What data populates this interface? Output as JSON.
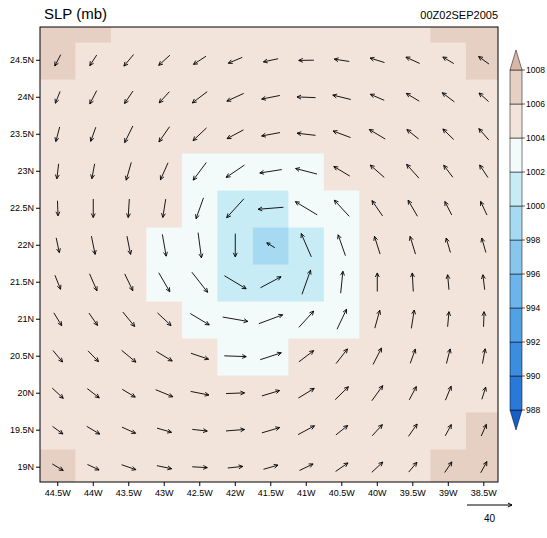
{
  "chart_data": {
    "type": "vector_field",
    "title": "SLP (mb)",
    "subtitle": "00Z02SEP2005",
    "xlim": [
      -44.75,
      -38.3
    ],
    "ylim": [
      18.8,
      24.95
    ],
    "xticks": [
      {
        "value": -44.5,
        "label": "44.5W"
      },
      {
        "value": -44,
        "label": "44W"
      },
      {
        "value": -43.5,
        "label": "43.5W"
      },
      {
        "value": -43,
        "label": "43W"
      },
      {
        "value": -42.5,
        "label": "42.5W"
      },
      {
        "value": -42,
        "label": "42W"
      },
      {
        "value": -41.5,
        "label": "41.5W"
      },
      {
        "value": -41,
        "label": "41W"
      },
      {
        "value": -40.5,
        "label": "40.5W"
      },
      {
        "value": -40,
        "label": "40W"
      },
      {
        "value": -39.5,
        "label": "39.5W"
      },
      {
        "value": -39,
        "label": "39W"
      },
      {
        "value": -38.5,
        "label": "38.5W"
      }
    ],
    "yticks": [
      {
        "value": 19,
        "label": "19N"
      },
      {
        "value": 19.5,
        "label": "19.5N"
      },
      {
        "value": 20,
        "label": "20N"
      },
      {
        "value": 20.5,
        "label": "20.5N"
      },
      {
        "value": 21,
        "label": "21N"
      },
      {
        "value": 21.5,
        "label": "21.5N"
      },
      {
        "value": 22,
        "label": "22N"
      },
      {
        "value": 22.5,
        "label": "22.5N"
      },
      {
        "value": 23,
        "label": "23N"
      },
      {
        "value": 23.5,
        "label": "23.5N"
      },
      {
        "value": 24,
        "label": "24N"
      },
      {
        "value": 24.5,
        "label": "24.5N"
      }
    ],
    "slp": {
      "x": [
        -44.5,
        -44,
        -43.5,
        -43,
        -42.5,
        -42,
        -41.5,
        -41,
        -40.5,
        -40,
        -39.5,
        -39,
        -38.5
      ],
      "y": [
        19,
        19.5,
        20,
        20.5,
        21,
        21.5,
        22,
        22.5,
        23,
        23.5,
        24,
        24.5,
        25
      ],
      "values": [
        [
          1006.3,
          1005.8,
          1005.2,
          1005.0,
          1004.9,
          1004.8,
          1004.8,
          1004.8,
          1004.9,
          1005.0,
          1005.3,
          1006.1,
          1006.4
        ],
        [
          1005.8,
          1005.2,
          1004.9,
          1004.8,
          1004.7,
          1004.7,
          1004.7,
          1004.7,
          1004.7,
          1004.8,
          1004.9,
          1005.3,
          1006.1
        ],
        [
          1005.2,
          1004.9,
          1004.7,
          1004.6,
          1004.5,
          1004.4,
          1004.4,
          1004.4,
          1004.5,
          1004.6,
          1004.7,
          1004.9,
          1005.4
        ],
        [
          1005.0,
          1004.8,
          1004.6,
          1004.5,
          1004.3,
          1003.8,
          1003.6,
          1004.0,
          1004.3,
          1004.5,
          1004.6,
          1004.8,
          1005.0
        ],
        [
          1004.9,
          1004.7,
          1004.5,
          1004.2,
          1003.3,
          1002.4,
          1002.2,
          1002.8,
          1003.7,
          1004.4,
          1004.6,
          1004.7,
          1004.9
        ],
        [
          1004.8,
          1004.7,
          1004.5,
          1003.8,
          1002.3,
          1000.6,
          1000.2,
          1001.3,
          1003.1,
          1004.2,
          1004.5,
          1004.7,
          1004.8
        ],
        [
          1004.8,
          1004.7,
          1004.5,
          1003.7,
          1002.1,
          1000.1,
          999.2,
          1001.0,
          1002.9,
          1004.1,
          1004.5,
          1004.7,
          1004.8
        ],
        [
          1004.8,
          1004.7,
          1004.5,
          1004.0,
          1002.8,
          1001.3,
          1001.0,
          1002.0,
          1003.3,
          1004.3,
          1004.5,
          1004.7,
          1004.9
        ],
        [
          1004.9,
          1004.7,
          1004.6,
          1004.4,
          1003.7,
          1003.1,
          1002.9,
          1003.3,
          1004.1,
          1004.4,
          1004.6,
          1004.8,
          1005.0
        ],
        [
          1005.0,
          1004.8,
          1004.7,
          1004.6,
          1004.5,
          1004.2,
          1004.1,
          1004.3,
          1004.5,
          1004.6,
          1004.7,
          1004.9,
          1005.2
        ],
        [
          1005.3,
          1004.9,
          1004.8,
          1004.7,
          1004.7,
          1004.6,
          1004.6,
          1004.6,
          1004.7,
          1004.8,
          1004.9,
          1005.1,
          1005.6
        ],
        [
          1006.1,
          1005.3,
          1005.0,
          1004.9,
          1004.8,
          1004.8,
          1004.8,
          1004.8,
          1004.9,
          1005.0,
          1005.2,
          1005.5,
          1006.3
        ],
        [
          1006.5,
          1006.1,
          1005.5,
          1005.2,
          1005.0,
          1005.0,
          1005.0,
          1005.0,
          1005.1,
          1005.3,
          1005.6,
          1006.3,
          1006.6
        ]
      ]
    },
    "wind": {
      "x": [
        -44.5,
        -44,
        -43.5,
        -43,
        -42.5,
        -42,
        -41.5,
        -41,
        -40.5,
        -40,
        -39.5,
        -39,
        -38.5
      ],
      "y": [
        19,
        19.5,
        20,
        20.5,
        21,
        21.5,
        22,
        22.5,
        23,
        23.5,
        24,
        24.5
      ],
      "u": [
        [
          9.7,
          10.3,
          12.7,
          13.1,
          13.4,
          13.3,
          12.9,
          12.1,
          11.0,
          9.8,
          7.3,
          6.3,
          5.5
        ],
        [
          9.2,
          11.5,
          12.2,
          12.9,
          13.3,
          16.5,
          15.8,
          14.6,
          10.5,
          9.0,
          7.7,
          5.4,
          4.6
        ],
        [
          9.8,
          10.6,
          11.5,
          15.3,
          16.2,
          16.5,
          15.8,
          14.1,
          11.8,
          9.7,
          6.3,
          5.1,
          3.4
        ],
        [
          8.6,
          9.4,
          12.7,
          14.1,
          15.7,
          19.5,
          18.7,
          13.1,
          10.1,
          7.5,
          4.5,
          3.3,
          2.4
        ],
        [
          7.0,
          7.6,
          10.5,
          12.1,
          16.8,
          22.4,
          21.2,
          13.2,
          8.4,
          4.4,
          2.6,
          1.2,
          0.5
        ],
        [
          5.0,
          6.6,
          7.2,
          9.8,
          14.0,
          19.3,
          18.3,
          7.6,
          2.0,
          0.0,
          -0.9,
          -1.2,
          -1.6
        ],
        [
          2.8,
          3.3,
          3.2,
          3.4,
          3.0,
          0.0,
          -7.1,
          -9.0,
          -6.5,
          -5.0,
          -4.8,
          -3.8,
          -3.7
        ],
        [
          0.5,
          0.0,
          -1.0,
          -2.6,
          -6.6,
          -15.3,
          -22.5,
          -19.4,
          -13.3,
          -9.4,
          -8.3,
          -6.1,
          -5.7
        ],
        [
          -1.6,
          -2.5,
          -4.5,
          -6.7,
          -11.7,
          -16.2,
          -19.5,
          -19.0,
          -14.2,
          -12.4,
          -11.0,
          -8.1,
          -7.4
        ],
        [
          -3.4,
          -4.5,
          -7.3,
          -9.4,
          -12.0,
          -14.6,
          -16.3,
          -16.4,
          -15.5,
          -14.2,
          -10.5,
          -9.6,
          -8.8
        ],
        [
          -4.2,
          -6.1,
          -7.5,
          -9.0,
          -13.2,
          -15.0,
          -16.2,
          -16.5,
          -16.0,
          -12.3,
          -11.5,
          -10.7,
          -8.5
        ],
        [
          -5.3,
          -6.2,
          -8.6,
          -9.9,
          -11.2,
          -12.4,
          -13.1,
          -13.4,
          -13.3,
          -12.8,
          -12.2,
          -9.7,
          -9.2
        ]
      ],
      "v": [
        [
          -5.8,
          -4.9,
          -4.4,
          -2.7,
          -0.7,
          1.4,
          3.7,
          5.8,
          7.6,
          9.1,
          8.7,
          9.4,
          9.9
        ],
        [
          -6.7,
          -6.9,
          -5.5,
          -3.7,
          -1.5,
          1.3,
          4.7,
          7.8,
          8.4,
          9.9,
          11.0,
          10.0,
          10.4
        ],
        [
          -9.1,
          -8.2,
          -6.9,
          -6.3,
          -3.2,
          0.6,
          4.8,
          8.6,
          11.5,
          13.4,
          11.8,
          12.4,
          10.8
        ],
        [
          -10.3,
          -9.6,
          -10.5,
          -8.5,
          -5.3,
          -0.7,
          6.1,
          10.0,
          13.0,
          14.6,
          12.6,
          13.0,
          13.2
        ],
        [
          -11.4,
          -11.0,
          -12.8,
          -11.3,
          -10.1,
          -3.9,
          7.9,
          14.5,
          17.7,
          15.9,
          16.3,
          13.4,
          13.4
        ],
        [
          -12.4,
          -15.1,
          -14.9,
          -16.9,
          -17.9,
          -11.6,
          9.8,
          21.4,
          19.5,
          16.5,
          16.5,
          13.3,
          13.3
        ],
        [
          -13.1,
          -16.2,
          -16.2,
          -19.4,
          -22.4,
          -20.7,
          4.3,
          20.7,
          18.6,
          15.8,
          15.8,
          12.9,
          12.9
        ],
        [
          -13.4,
          -16.5,
          -16.5,
          -16.3,
          -18.5,
          -16.8,
          -1.8,
          11.7,
          14.4,
          13.6,
          14.3,
          11.9,
          12.1
        ],
        [
          -13.3,
          -13.2,
          -15.8,
          -15.1,
          -15.7,
          -10.9,
          -3.0,
          4.9,
          8.5,
          10.9,
          12.3,
          10.7,
          11.2
        ],
        [
          -13.0,
          -12.6,
          -14.8,
          -13.5,
          -11.3,
          -7.8,
          -3.0,
          1.9,
          5.8,
          8.5,
          8.4,
          9.4,
          10.0
        ],
        [
          -10.5,
          -11.9,
          -11.1,
          -9.9,
          -10.0,
          -6.9,
          -3.2,
          0.6,
          3.9,
          5.3,
          6.9,
          8.1,
          7.6
        ],
        [
          -10.0,
          -9.5,
          -10.3,
          -9.0,
          -7.3,
          -5.2,
          -2.8,
          -0.2,
          2.1,
          4.0,
          5.6,
          5.8,
          6.7
        ]
      ]
    },
    "reference_vector": 40,
    "colorbar": {
      "ticks": [
        988,
        990,
        992,
        994,
        996,
        998,
        1000,
        1002,
        1004,
        1006,
        1008
      ],
      "colors": [
        "#1560c8",
        "#2a78d8",
        "#3c8ce0",
        "#52a0e6",
        "#6cb4ea",
        "#88c6ee",
        "#a6daf2",
        "#c8ecf5",
        "#f3fafa",
        "#f2e3db",
        "#e6cfc3",
        "#d8b7a7"
      ]
    }
  }
}
